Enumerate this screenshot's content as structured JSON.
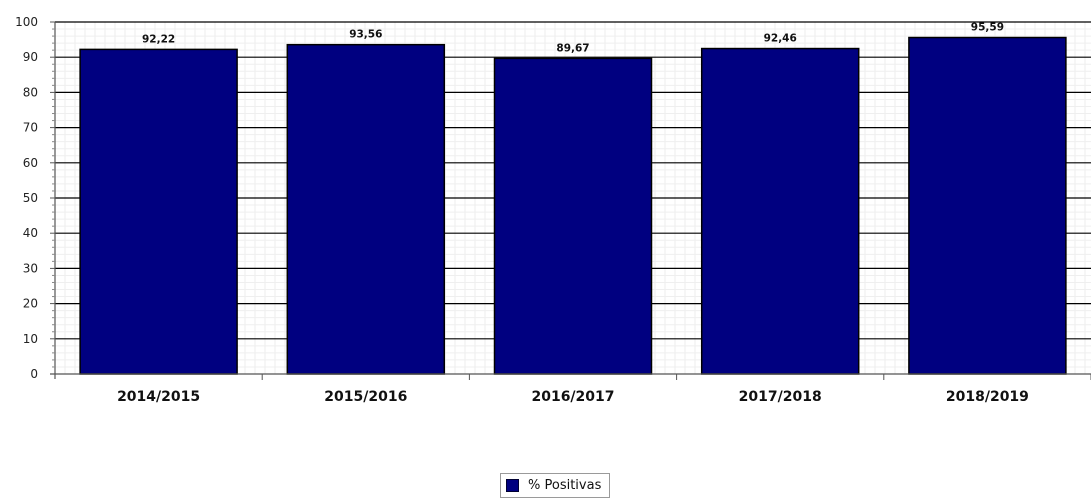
{
  "chart_data": {
    "type": "bar",
    "categories": [
      "2014/2015",
      "2015/2016",
      "2016/2017",
      "2017/2018",
      "2018/2019"
    ],
    "series": [
      {
        "name": "% Positivas",
        "values": [
          92.22,
          93.56,
          89.67,
          92.46,
          95.59
        ],
        "color": "#000080"
      }
    ],
    "data_labels": [
      "92,22",
      "93,56",
      "89,67",
      "92,46",
      "95,59"
    ],
    "yticks": [
      0,
      10,
      20,
      30,
      40,
      50,
      60,
      70,
      80,
      90,
      100
    ],
    "ylim": [
      0,
      100
    ],
    "grid": true,
    "legend_position": "bottom-center",
    "title": "",
    "xlabel": "",
    "ylabel": ""
  },
  "legend": {
    "label": "% Positivas"
  }
}
